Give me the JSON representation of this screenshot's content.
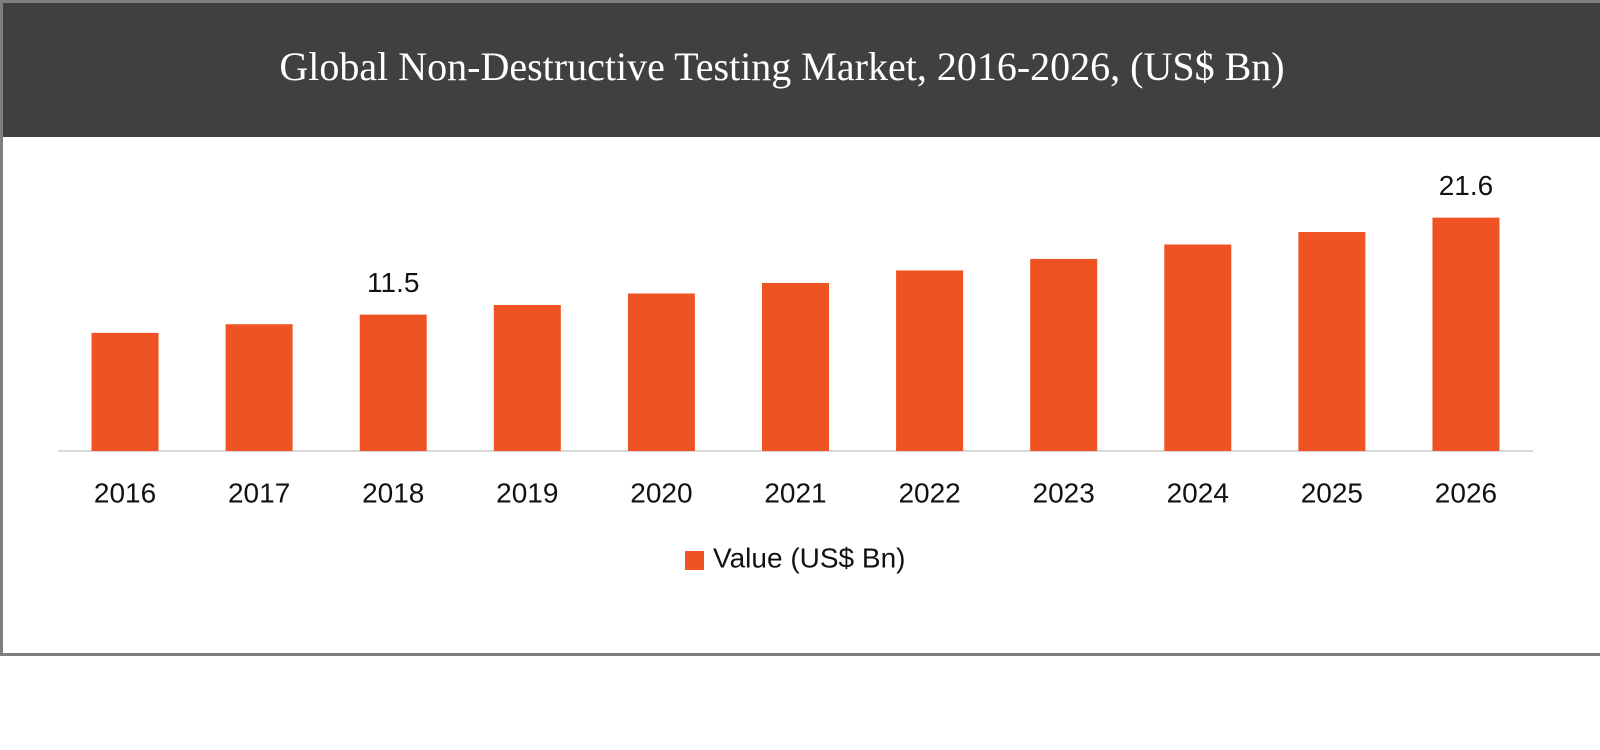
{
  "chart_data": {
    "type": "bar",
    "title": "Global Non-Destructive Testing Market, 2016-2026, (US$ Bn)",
    "categories": [
      "2016",
      "2017",
      "2018",
      "2019",
      "2020",
      "2021",
      "2022",
      "2023",
      "2024",
      "2025",
      "2026"
    ],
    "series": [
      {
        "name": "Value (US$ Bn)",
        "color": "#f05323",
        "values": [
          9.6,
          10.5,
          11.5,
          12.5,
          13.7,
          14.8,
          16.1,
          17.3,
          18.8,
          20.1,
          21.6
        ],
        "value_labels": [
          null,
          null,
          "11.5",
          null,
          null,
          null,
          null,
          null,
          null,
          null,
          "21.6"
        ]
      }
    ],
    "ylim": [
      -2.7,
      27.6
    ]
  }
}
